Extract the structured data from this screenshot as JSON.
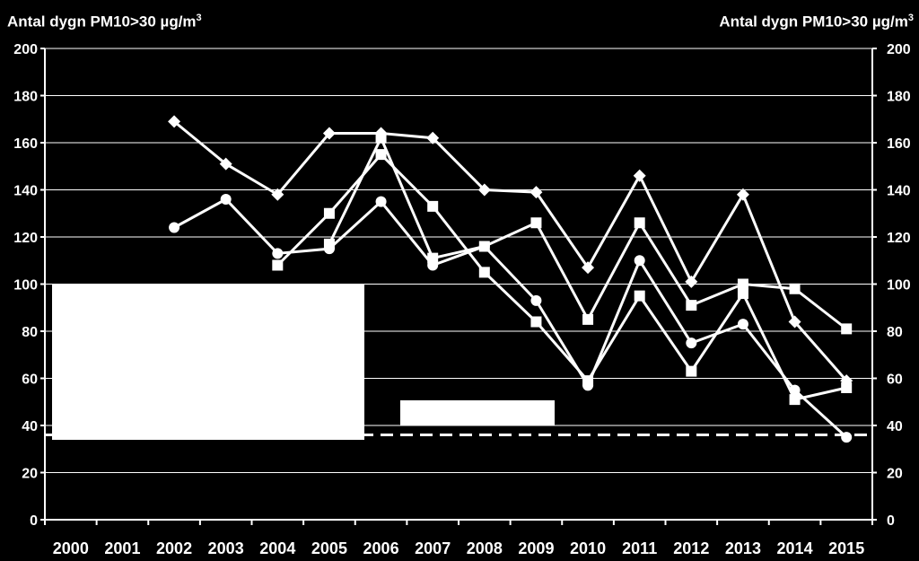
{
  "chart_data": {
    "type": "line",
    "ylabel_left": "Antal dygn PM10>30 µg/m",
    "ylabel_right": "Antal dygn PM10>30 µg/m",
    "ylabel_unit_sup": "3",
    "ylim": [
      0,
      200
    ],
    "yticks": [
      0,
      20,
      40,
      60,
      80,
      100,
      120,
      140,
      160,
      180,
      200
    ],
    "categories": [
      "2000",
      "2001",
      "2002",
      "2003",
      "2004",
      "2005",
      "2006",
      "2007",
      "2008",
      "2009",
      "2010",
      "2011",
      "2012",
      "2013",
      "2014",
      "2015"
    ],
    "grid": true,
    "reference_line": {
      "value": 36,
      "style": "dashed"
    },
    "series": [
      {
        "marker": "diamond",
        "values": [
          null,
          null,
          169,
          151,
          138,
          164,
          164,
          162,
          140,
          139,
          107,
          146,
          101,
          138,
          84,
          59
        ]
      },
      {
        "marker": "circle",
        "values": [
          null,
          null,
          124,
          136,
          113,
          115,
          135,
          108,
          116,
          93,
          57,
          110,
          75,
          83,
          55,
          35
        ]
      },
      {
        "marker": "square",
        "values": [
          null,
          null,
          null,
          null,
          108,
          130,
          155,
          133,
          105,
          84,
          59,
          95,
          63,
          96,
          51,
          56
        ]
      },
      {
        "marker": "square",
        "values": [
          null,
          null,
          null,
          null,
          null,
          117,
          162,
          111,
          116,
          126,
          85,
          126,
          91,
          100,
          98,
          81
        ]
      }
    ]
  },
  "colors": {
    "background": "#000000",
    "foreground": "#ffffff",
    "grid": "#ffffff"
  }
}
